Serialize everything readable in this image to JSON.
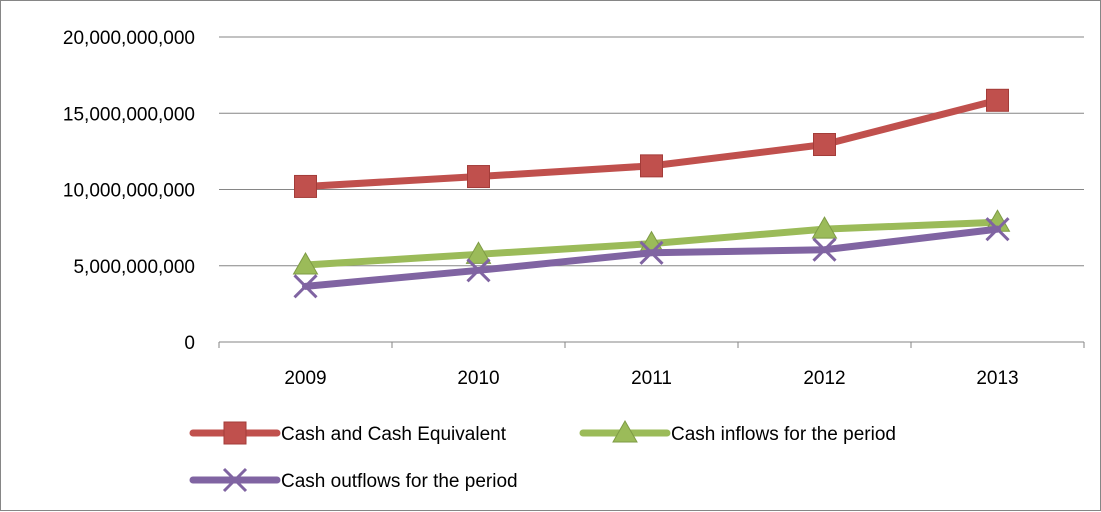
{
  "chart_data": {
    "type": "line",
    "categories": [
      "2009",
      "2010",
      "2011",
      "2012",
      "2013"
    ],
    "ylim": [
      0,
      20000000000
    ],
    "yticks": [
      0,
      5000000000,
      10000000000,
      15000000000,
      20000000000
    ],
    "ytick_labels": [
      "0",
      "5,000,000,000",
      "10,000,000,000",
      "15,000,000,000",
      "20,000,000,000"
    ],
    "grid": true,
    "legend_position": "bottom",
    "series": [
      {
        "name": "Cash and Cash Equivalent",
        "color": "#C0504D",
        "marker": "square",
        "values": [
          10200000000,
          10850000000,
          11550000000,
          12950000000,
          15850000000
        ]
      },
      {
        "name": "Cash inflows for the period",
        "color": "#9BBB59",
        "marker": "triangle",
        "values": [
          5050000000,
          5750000000,
          6450000000,
          7400000000,
          7850000000
        ]
      },
      {
        "name": "Cash outflows for the period",
        "color": "#8064A2",
        "marker": "x",
        "values": [
          3650000000,
          4700000000,
          5850000000,
          6050000000,
          7400000000
        ]
      }
    ]
  }
}
